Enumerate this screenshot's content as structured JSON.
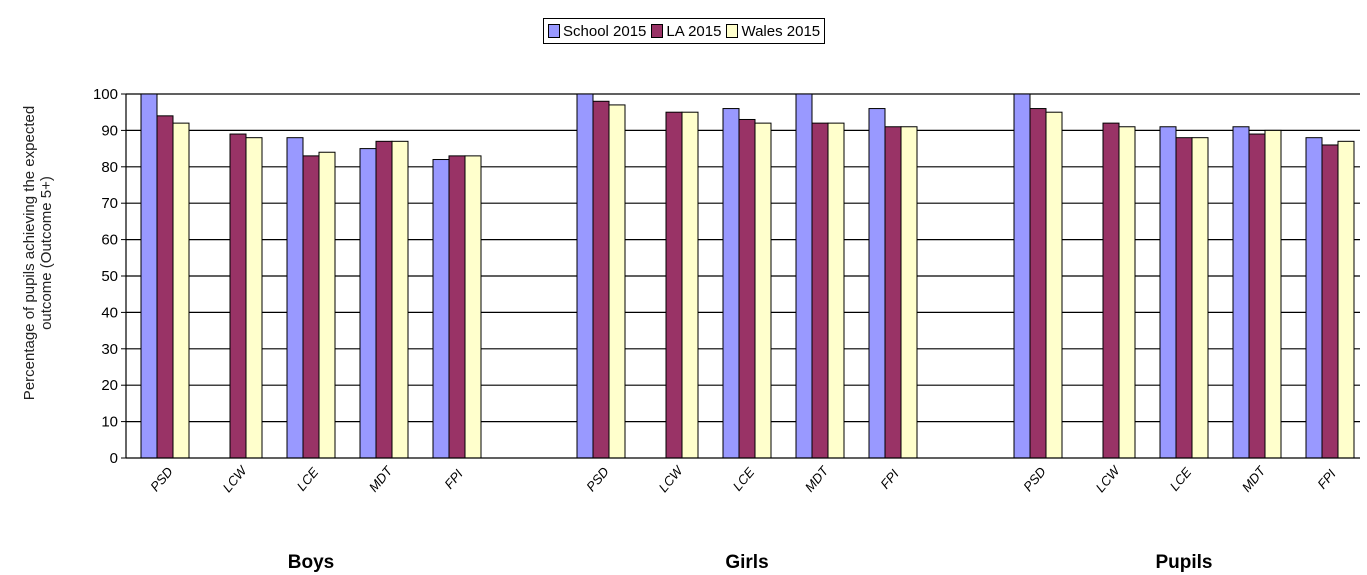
{
  "chart_data": {
    "type": "bar",
    "ylabel": "Percentage of pupils achieving the expected outcome (Outcome 5+)",
    "ylim": [
      0,
      100
    ],
    "yticks": [
      "0",
      "10",
      "20",
      "30",
      "40",
      "50",
      "60",
      "70",
      "80",
      "90",
      "100"
    ],
    "grid": true,
    "legend_position": "top-center",
    "series": [
      {
        "name": "School 2015",
        "color": "#9999ff"
      },
      {
        "name": "LA 2015",
        "color": "#993366"
      },
      {
        "name": "Wales 2015",
        "color": "#ffffcc"
      }
    ],
    "groups": [
      {
        "name": "Boys",
        "categories": [
          "PSD",
          "LCW",
          "LCE",
          "MDT",
          "FPI"
        ],
        "values": [
          [
            100,
            94,
            92
          ],
          [
            null,
            89,
            88
          ],
          [
            88,
            83,
            84
          ],
          [
            85,
            87,
            87
          ],
          [
            82,
            83,
            83
          ]
        ]
      },
      {
        "name": "Girls",
        "categories": [
          "PSD",
          "LCW",
          "LCE",
          "MDT",
          "FPI"
        ],
        "values": [
          [
            100,
            98,
            97
          ],
          [
            null,
            95,
            95
          ],
          [
            96,
            93,
            92
          ],
          [
            100,
            92,
            92
          ],
          [
            96,
            91,
            91
          ]
        ]
      },
      {
        "name": "Pupils",
        "categories": [
          "PSD",
          "LCW",
          "LCE",
          "MDT",
          "FPI"
        ],
        "values": [
          [
            100,
            96,
            95
          ],
          [
            null,
            92,
            91
          ],
          [
            91,
            88,
            88
          ],
          [
            91,
            89,
            90
          ],
          [
            88,
            86,
            87
          ]
        ]
      }
    ]
  }
}
